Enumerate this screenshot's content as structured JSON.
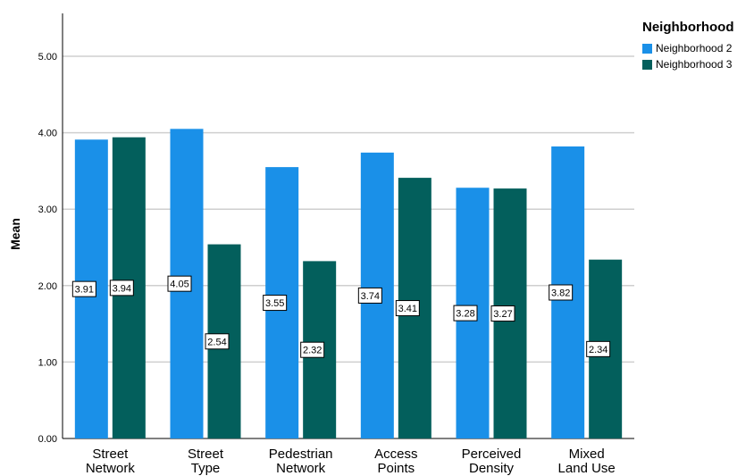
{
  "chart_data": {
    "type": "bar",
    "ylabel": "Mean",
    "ylim": [
      0,
      5.5
    ],
    "yticks": [
      "0.00",
      "1.00",
      "2.00",
      "3.00",
      "4.00",
      "5.00"
    ],
    "categories": [
      [
        "Street",
        "Network"
      ],
      [
        "Street",
        "Type"
      ],
      [
        "Pedestrian",
        "Network"
      ],
      [
        "Access",
        "Points"
      ],
      [
        "Perceived",
        "Density"
      ],
      [
        "Mixed",
        "Land Use"
      ]
    ],
    "series": [
      {
        "name": "Neighborhood 2",
        "color": "#1a90e8",
        "values": [
          3.91,
          4.05,
          3.55,
          3.74,
          3.28,
          3.82
        ]
      },
      {
        "name": "Neighborhood 3",
        "color": "#035f5c",
        "values": [
          3.94,
          2.54,
          2.32,
          3.41,
          3.27,
          2.34
        ]
      }
    ],
    "legend": {
      "title": "Neighborhood",
      "position": "top-right"
    },
    "grid": true
  }
}
